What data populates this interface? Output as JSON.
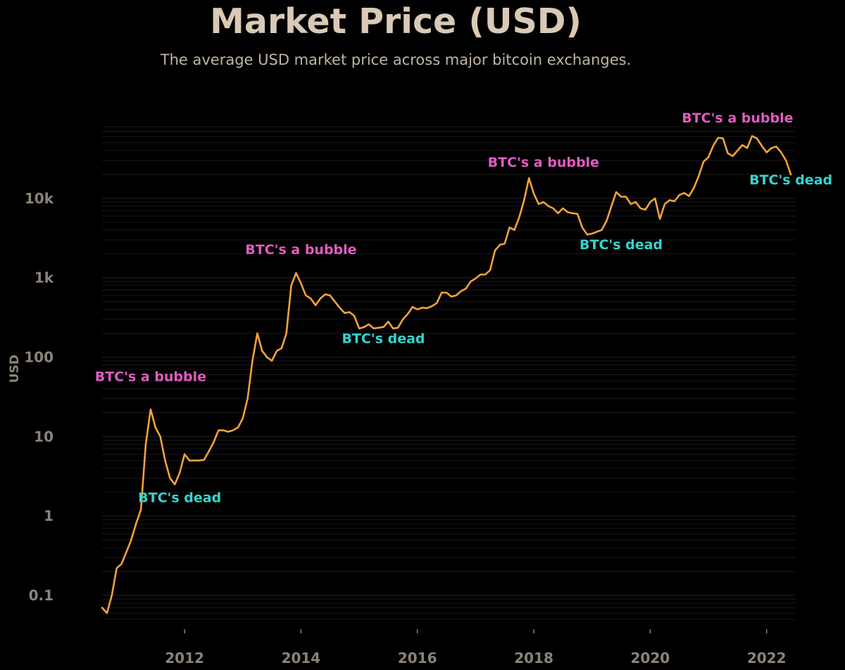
{
  "chart_data": {
    "type": "line",
    "title": "Market Price (USD)",
    "subtitle": "The average USD market price across major bitcoin exchanges.",
    "ylabel": "USD",
    "xlabel": "",
    "yscale": "log",
    "ylim": [
      0.05,
      80000
    ],
    "xlim": [
      "2010-08",
      "2022-07"
    ],
    "grid": true,
    "y_ticks": [
      {
        "value": 0.1,
        "label": "0.1"
      },
      {
        "value": 1,
        "label": "1"
      },
      {
        "value": 10,
        "label": "10"
      },
      {
        "value": 100,
        "label": "100"
      },
      {
        "value": 1000,
        "label": "1k"
      },
      {
        "value": 10000,
        "label": "10k"
      }
    ],
    "x_ticks": [
      {
        "value": "2012-01",
        "label": "2012"
      },
      {
        "value": "2014-01",
        "label": "2014"
      },
      {
        "value": "2016-01",
        "label": "2016"
      },
      {
        "value": "2018-01",
        "label": "2018"
      },
      {
        "value": "2020-01",
        "label": "2020"
      },
      {
        "value": "2022-01",
        "label": "2022"
      }
    ],
    "series": [
      {
        "color": "#f2a23c",
        "points": [
          [
            "2010-08",
            0.07
          ],
          [
            "2010-09",
            0.06
          ],
          [
            "2010-10",
            0.1
          ],
          [
            "2010-11",
            0.22
          ],
          [
            "2010-12",
            0.25
          ],
          [
            "2011-01",
            0.35
          ],
          [
            "2011-02",
            0.5
          ],
          [
            "2011-03",
            0.8
          ],
          [
            "2011-04",
            1.2
          ],
          [
            "2011-05",
            8
          ],
          [
            "2011-06",
            22
          ],
          [
            "2011-07",
            13
          ],
          [
            "2011-08",
            10
          ],
          [
            "2011-09",
            5
          ],
          [
            "2011-10",
            3
          ],
          [
            "2011-11",
            2.5
          ],
          [
            "2011-12",
            3.5
          ],
          [
            "2012-01",
            6
          ],
          [
            "2012-02",
            5
          ],
          [
            "2012-03",
            5
          ],
          [
            "2012-04",
            5
          ],
          [
            "2012-05",
            5.1
          ],
          [
            "2012-06",
            6.5
          ],
          [
            "2012-07",
            8.5
          ],
          [
            "2012-08",
            12
          ],
          [
            "2012-09",
            12
          ],
          [
            "2012-10",
            11.5
          ],
          [
            "2012-11",
            12
          ],
          [
            "2012-12",
            13
          ],
          [
            "2013-01",
            17
          ],
          [
            "2013-02",
            30
          ],
          [
            "2013-03",
            90
          ],
          [
            "2013-04",
            200
          ],
          [
            "2013-05",
            120
          ],
          [
            "2013-06",
            100
          ],
          [
            "2013-07",
            90
          ],
          [
            "2013-08",
            120
          ],
          [
            "2013-09",
            130
          ],
          [
            "2013-10",
            200
          ],
          [
            "2013-11",
            800
          ],
          [
            "2013-12",
            1150
          ],
          [
            "2014-01",
            850
          ],
          [
            "2014-02",
            600
          ],
          [
            "2014-03",
            550
          ],
          [
            "2014-04",
            450
          ],
          [
            "2014-05",
            550
          ],
          [
            "2014-06",
            620
          ],
          [
            "2014-07",
            600
          ],
          [
            "2014-08",
            500
          ],
          [
            "2014-09",
            420
          ],
          [
            "2014-10",
            360
          ],
          [
            "2014-11",
            370
          ],
          [
            "2014-12",
            330
          ],
          [
            "2015-01",
            230
          ],
          [
            "2015-02",
            240
          ],
          [
            "2015-03",
            260
          ],
          [
            "2015-04",
            230
          ],
          [
            "2015-05",
            235
          ],
          [
            "2015-06",
            240
          ],
          [
            "2015-07",
            280
          ],
          [
            "2015-08",
            230
          ],
          [
            "2015-09",
            235
          ],
          [
            "2015-10",
            300
          ],
          [
            "2015-11",
            350
          ],
          [
            "2015-12",
            430
          ],
          [
            "2016-01",
            400
          ],
          [
            "2016-02",
            420
          ],
          [
            "2016-03",
            415
          ],
          [
            "2016-04",
            440
          ],
          [
            "2016-05",
            480
          ],
          [
            "2016-06",
            650
          ],
          [
            "2016-07",
            650
          ],
          [
            "2016-08",
            580
          ],
          [
            "2016-09",
            600
          ],
          [
            "2016-10",
            680
          ],
          [
            "2016-11",
            730
          ],
          [
            "2016-12",
            900
          ],
          [
            "2017-01",
            980
          ],
          [
            "2017-02",
            1100
          ],
          [
            "2017-03",
            1100
          ],
          [
            "2017-04",
            1250
          ],
          [
            "2017-05",
            2200
          ],
          [
            "2017-06",
            2600
          ],
          [
            "2017-07",
            2700
          ],
          [
            "2017-08",
            4300
          ],
          [
            "2017-09",
            4000
          ],
          [
            "2017-10",
            5800
          ],
          [
            "2017-11",
            9500
          ],
          [
            "2017-12",
            18000
          ],
          [
            "2018-01",
            11500
          ],
          [
            "2018-02",
            8500
          ],
          [
            "2018-03",
            9000
          ],
          [
            "2018-04",
            8000
          ],
          [
            "2018-05",
            7500
          ],
          [
            "2018-06",
            6500
          ],
          [
            "2018-07",
            7500
          ],
          [
            "2018-08",
            6700
          ],
          [
            "2018-09",
            6500
          ],
          [
            "2018-10",
            6400
          ],
          [
            "2018-11",
            4300
          ],
          [
            "2018-12",
            3500
          ],
          [
            "2019-01",
            3600
          ],
          [
            "2019-02",
            3800
          ],
          [
            "2019-03",
            4000
          ],
          [
            "2019-04",
            5200
          ],
          [
            "2019-05",
            8000
          ],
          [
            "2019-06",
            12000
          ],
          [
            "2019-07",
            10500
          ],
          [
            "2019-08",
            10500
          ],
          [
            "2019-09",
            8500
          ],
          [
            "2019-10",
            9000
          ],
          [
            "2019-11",
            7500
          ],
          [
            "2019-12",
            7200
          ],
          [
            "2020-01",
            9000
          ],
          [
            "2020-02",
            10000
          ],
          [
            "2020-03",
            5500
          ],
          [
            "2020-04",
            8500
          ],
          [
            "2020-05",
            9500
          ],
          [
            "2020-06",
            9200
          ],
          [
            "2020-07",
            11000
          ],
          [
            "2020-08",
            11700
          ],
          [
            "2020-09",
            10700
          ],
          [
            "2020-10",
            13500
          ],
          [
            "2020-11",
            19000
          ],
          [
            "2020-12",
            29000
          ],
          [
            "2021-01",
            33000
          ],
          [
            "2021-02",
            46000
          ],
          [
            "2021-03",
            58000
          ],
          [
            "2021-04",
            57000
          ],
          [
            "2021-05",
            37000
          ],
          [
            "2021-06",
            34000
          ],
          [
            "2021-07",
            40000
          ],
          [
            "2021-08",
            47000
          ],
          [
            "2021-09",
            43000
          ],
          [
            "2021-10",
            61000
          ],
          [
            "2021-11",
            57000
          ],
          [
            "2021-12",
            46000
          ],
          [
            "2022-01",
            38000
          ],
          [
            "2022-02",
            43000
          ],
          [
            "2022-03",
            45000
          ],
          [
            "2022-04",
            38000
          ],
          [
            "2022-05",
            30000
          ],
          [
            "2022-06",
            20000
          ]
        ]
      }
    ],
    "annotations": [
      {
        "text": "BTC's a bubble",
        "x": "2011-06",
        "y": 50,
        "color": "#e05cbf"
      },
      {
        "text": "BTC's dead",
        "x": "2011-12",
        "y": 1.5,
        "color": "#36d3cf"
      },
      {
        "text": "BTC's a bubble",
        "x": "2014-01",
        "y": 2000,
        "color": "#e05cbf"
      },
      {
        "text": "BTC's dead",
        "x": "2015-06",
        "y": 150,
        "color": "#36d3cf"
      },
      {
        "text": "BTC's a bubble",
        "x": "2018-03",
        "y": 25000,
        "color": "#e05cbf"
      },
      {
        "text": "BTC's dead",
        "x": "2019-07",
        "y": 2300,
        "color": "#36d3cf"
      },
      {
        "text": "BTC's a bubble",
        "x": "2021-07",
        "y": 90000,
        "color": "#e05cbf"
      },
      {
        "text": "BTC's dead",
        "x": "2022-06",
        "y": 15000,
        "color": "#36d3cf"
      }
    ],
    "colors": {
      "background": "#000000",
      "title": "#d9c9b5",
      "subtitle": "#bfb3a5",
      "tick_label": "#8c8378",
      "grid": "#1e1e1e"
    }
  }
}
